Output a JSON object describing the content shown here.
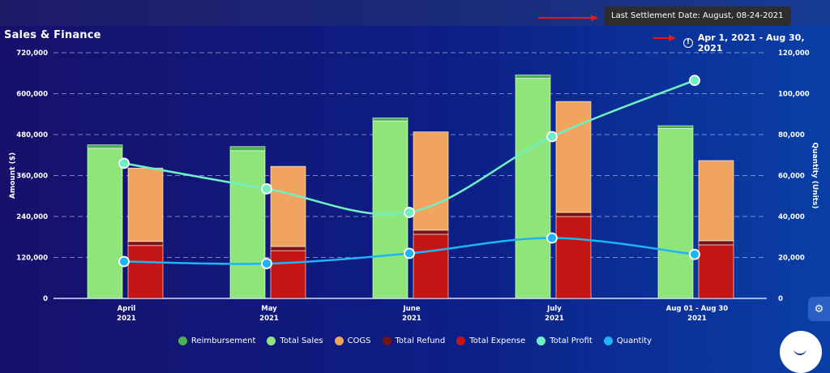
{
  "header": {
    "title": "Sales & Finance",
    "tooltip": "Last Settlement Date: August, 08-24-2021",
    "date_range": "Apr 1, 2021 - Aug 30, 2021",
    "info_icon": "info-circle-icon",
    "gear_icon": "gear-icon",
    "chat_icon": "chat-bubble-icon",
    "arrow_color": "#e11b1b"
  },
  "chart_data": {
    "type": "bar",
    "categories": [
      [
        "April",
        "2021"
      ],
      [
        "May",
        "2021"
      ],
      [
        "June",
        "2021"
      ],
      [
        "July",
        "2021"
      ],
      [
        "Aug 01 - Aug 30",
        "2021"
      ]
    ],
    "ylabel": "Amount ($)",
    "y2label": "Quantity (Units)",
    "ylim": [
      0,
      720000
    ],
    "y2lim": [
      0,
      120000
    ],
    "yticks": [
      "720,000",
      "600,000",
      "480,000",
      "360,000",
      "240,000",
      "120,000",
      "0"
    ],
    "y2ticks": [
      "120,000",
      "100,000",
      "80,000",
      "60,000",
      "40,000",
      "20,000",
      "0"
    ],
    "grid": true,
    "legend_position": "bottom",
    "stack_sales": [
      {
        "name": "Reimbursement",
        "color": "#4caf50",
        "values": [
          10000,
          12000,
          9000,
          10000,
          8000
        ]
      },
      {
        "name": "Total Sales",
        "color": "#8ee67a",
        "values": [
          440000,
          433000,
          520000,
          645000,
          498000
        ]
      }
    ],
    "stack_expense": [
      {
        "name": "Total Expense",
        "color": "#c41515",
        "values": [
          155000,
          140000,
          188000,
          240000,
          157000
        ]
      },
      {
        "name": "Total Refund",
        "color": "#761414",
        "values": [
          12000,
          12000,
          12000,
          12000,
          12000
        ]
      },
      {
        "name": "COGS",
        "color": "#f0a45f",
        "values": [
          215000,
          235000,
          288000,
          325000,
          235000
        ]
      }
    ],
    "lines": [
      {
        "name": "Total Profit",
        "color": "#6ff0c4",
        "axis": "right",
        "values": [
          66000,
          53500,
          42000,
          79000,
          106500
        ]
      },
      {
        "name": "Quantity",
        "color": "#1fb4f7",
        "axis": "right",
        "values": [
          18000,
          17000,
          22000,
          29500,
          21500
        ]
      }
    ],
    "legend": [
      {
        "name": "Reimbursement",
        "color": "#4caf50"
      },
      {
        "name": "Total Sales",
        "color": "#8ee67a"
      },
      {
        "name": "COGS",
        "color": "#f0a45f"
      },
      {
        "name": "Total Refund",
        "color": "#761414"
      },
      {
        "name": "Total Expense",
        "color": "#c41515"
      },
      {
        "name": "Total Profit",
        "color": "#6ff0c4"
      },
      {
        "name": "Quantity",
        "color": "#1fb4f7"
      }
    ]
  }
}
